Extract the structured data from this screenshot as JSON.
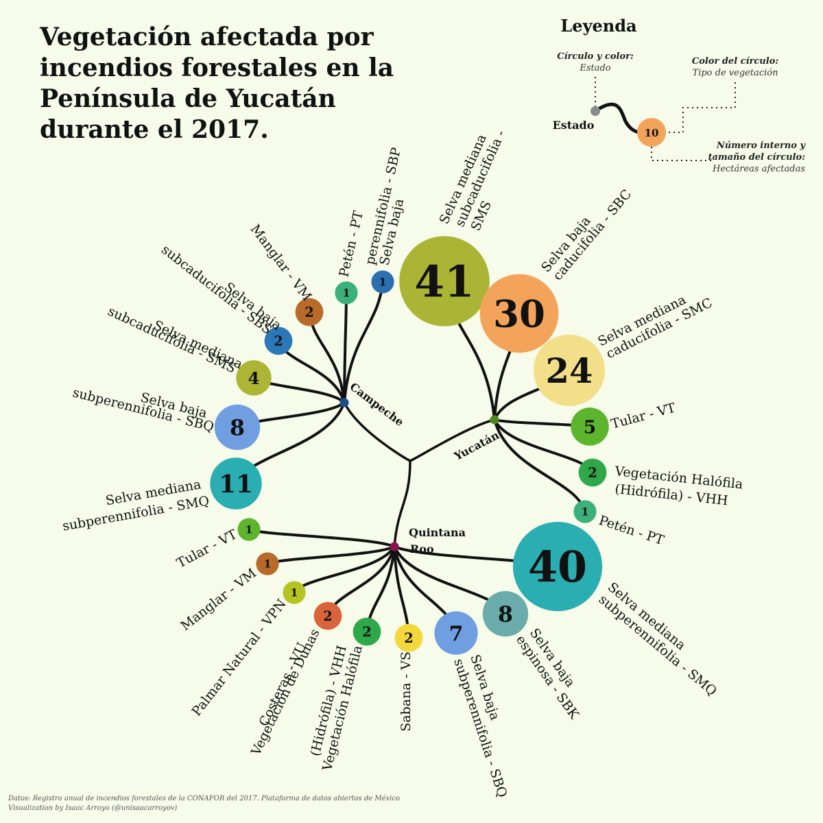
{
  "title_lines": [
    "Vegetación afectada por",
    "incendios forestales en la",
    "Península de Yucatán",
    "durante el 2017."
  ],
  "legend": {
    "title": "Leyenda",
    "circle_note_heading": "Círculo y color:",
    "circle_note_value": "Estado",
    "color_note_heading": "Color del círculo:",
    "color_note_value": "Tipo de vegetación",
    "number_note_heading_lines": [
      "Número interno y",
      "tamaño del círculo:"
    ],
    "number_note_value": "Hectáreas afectadas",
    "state_label": "Estado",
    "example_value": "10"
  },
  "footer": {
    "line1": "Datos: Registro anual de incendios forestales de la CONAFOR del 2017. Plataforma de datos abiertos de México",
    "line2": "Visualization by Isaac Arroyo (@unisaacarroyov)"
  },
  "states": [
    {
      "name_lines": [
        "Campeche"
      ],
      "color": "#1f4e8c",
      "vegetation": [
        {
          "label_lines": [
            "Petén - PT"
          ],
          "value": 1,
          "color": "#3bb07a"
        },
        {
          "label_lines": [
            "Selva baja",
            "perennifolia - SBP"
          ],
          "value": 1,
          "color": "#2b6fb0"
        },
        {
          "label_lines": [
            "Manglar - VM"
          ],
          "value": 2,
          "color": "#b86a2a"
        },
        {
          "label_lines": [
            "Selva baja",
            "subcaducifolia - SBS"
          ],
          "value": 2,
          "color": "#2b78b8"
        },
        {
          "label_lines": [
            "Selva mediana",
            "subcaducifolia - SMS"
          ],
          "value": 4,
          "color": "#adb535"
        },
        {
          "label_lines": [
            "Selva baja",
            "subperennifolia - SBQ"
          ],
          "value": 8,
          "color": "#6f9fe0"
        },
        {
          "label_lines": [
            "Selva mediana",
            "subperennifolia - SMQ"
          ],
          "value": 11,
          "color": "#2aaeb2"
        }
      ]
    },
    {
      "name_lines": [
        "Yucatán"
      ],
      "color": "#4a8a1c",
      "vegetation": [
        {
          "label_lines": [
            "Selva mediana",
            "subcaducifolia -",
            "SMS"
          ],
          "value": 41,
          "color": "#aab535"
        },
        {
          "label_lines": [
            "Selva baja",
            "caducifolia - SBC"
          ],
          "value": 30,
          "color": "#f3a35a"
        },
        {
          "label_lines": [
            "Selva mediana",
            "caducifolia - SMC"
          ],
          "value": 24,
          "color": "#f3df8a"
        },
        {
          "label_lines": [
            "Tular - VT"
          ],
          "value": 5,
          "color": "#5db52e"
        },
        {
          "label_lines": [
            "Vegetación Halófila",
            "(Hidrófila) - VHH"
          ],
          "value": 2,
          "color": "#2fa84a"
        },
        {
          "label_lines": [
            "Petén - PT"
          ],
          "value": 1,
          "color": "#3bb07a"
        }
      ]
    },
    {
      "name_lines": [
        "Quintana",
        "Roo"
      ],
      "color": "#8a1452",
      "vegetation": [
        {
          "label_lines": [
            "Tular - VT"
          ],
          "value": 1,
          "color": "#5db52e"
        },
        {
          "label_lines": [
            "Manglar - VM"
          ],
          "value": 1,
          "color": "#b86a2a"
        },
        {
          "label_lines": [
            "Palmar Natural - VPN"
          ],
          "value": 1,
          "color": "#b5c420"
        },
        {
          "label_lines": [
            "Vegetación de Dunas",
            "Costeras - VU"
          ],
          "value": 2,
          "color": "#d9643a"
        },
        {
          "label_lines": [
            "Vegetación Halófila",
            "(Hidrófila) - VHH"
          ],
          "value": 2,
          "color": "#2fa84a"
        },
        {
          "label_lines": [
            "Sabana - VS"
          ],
          "value": 2,
          "color": "#f2d83a"
        },
        {
          "label_lines": [
            "Selva baja",
            "subperennifolia - SBQ"
          ],
          "value": 7,
          "color": "#6f9fe0"
        },
        {
          "label_lines": [
            "Selva baja",
            "espinosa - SBK"
          ],
          "value": 8,
          "color": "#6aacac"
        },
        {
          "label_lines": [
            "Selva mediana",
            "subperennifolia - SMQ"
          ],
          "value": 40,
          "color": "#2aaeb2"
        }
      ]
    }
  ]
}
